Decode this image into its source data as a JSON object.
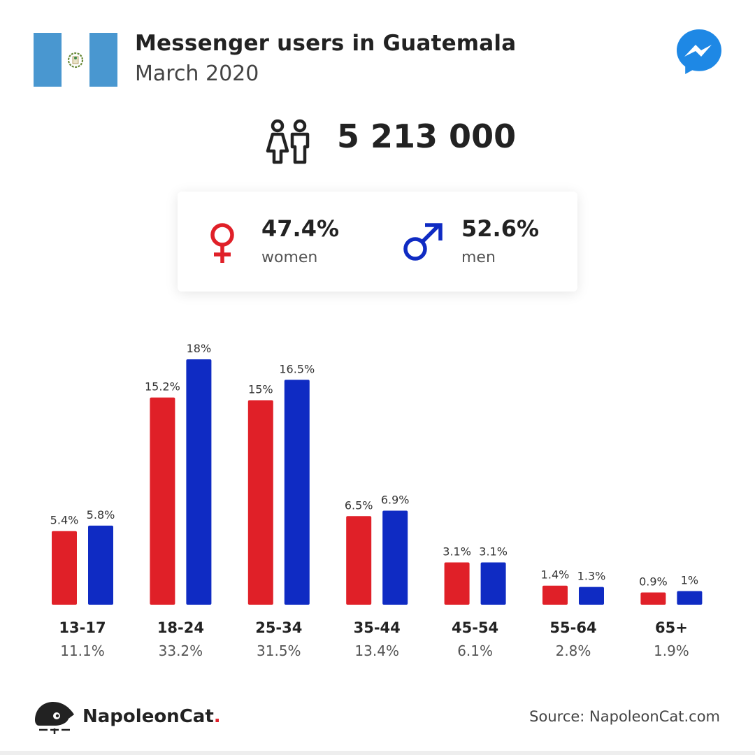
{
  "header": {
    "title": "Messenger users in Guatemala",
    "subtitle": "March 2020"
  },
  "colors": {
    "women": "#e02028",
    "men": "#0f2bc3",
    "flag_blue": "#4997d0",
    "brand_blue": "#1e88e5"
  },
  "icons": {
    "flag": "guatemala-flag-icon",
    "brand": "messenger-icon",
    "users": "users-icon",
    "female": "female-symbol-icon",
    "male": "male-symbol-icon",
    "logo": "napoleoncat-logo-icon"
  },
  "total_users": "5 213 000",
  "gender": {
    "women": {
      "pct": "47.4%",
      "label": "women"
    },
    "men": {
      "pct": "52.6%",
      "label": "men"
    }
  },
  "chart_data": {
    "type": "bar",
    "categories": [
      "13-17",
      "18-24",
      "25-34",
      "35-44",
      "45-54",
      "55-64",
      "65+"
    ],
    "category_totals": [
      "11.1%",
      "33.2%",
      "31.5%",
      "13.4%",
      "6.1%",
      "2.8%",
      "1.9%"
    ],
    "series": [
      {
        "key": "women",
        "values": [
          5.4,
          15.2,
          15,
          6.5,
          3.1,
          1.4,
          0.9
        ],
        "labels": [
          "5.4%",
          "15.2%",
          "15%",
          "6.5%",
          "3.1%",
          "1.4%",
          "0.9%"
        ]
      },
      {
        "key": "men",
        "values": [
          5.8,
          18,
          16.5,
          6.9,
          3.1,
          1.3,
          1
        ],
        "labels": [
          "5.8%",
          "18%",
          "16.5%",
          "6.9%",
          "3.1%",
          "1.3%",
          "1%"
        ]
      }
    ],
    "ylim": [
      0,
      18
    ],
    "grid": false
  },
  "footer": {
    "brand": "NapoleonCat",
    "brand_dot": ".",
    "source": "Source: NapoleonCat.com"
  }
}
